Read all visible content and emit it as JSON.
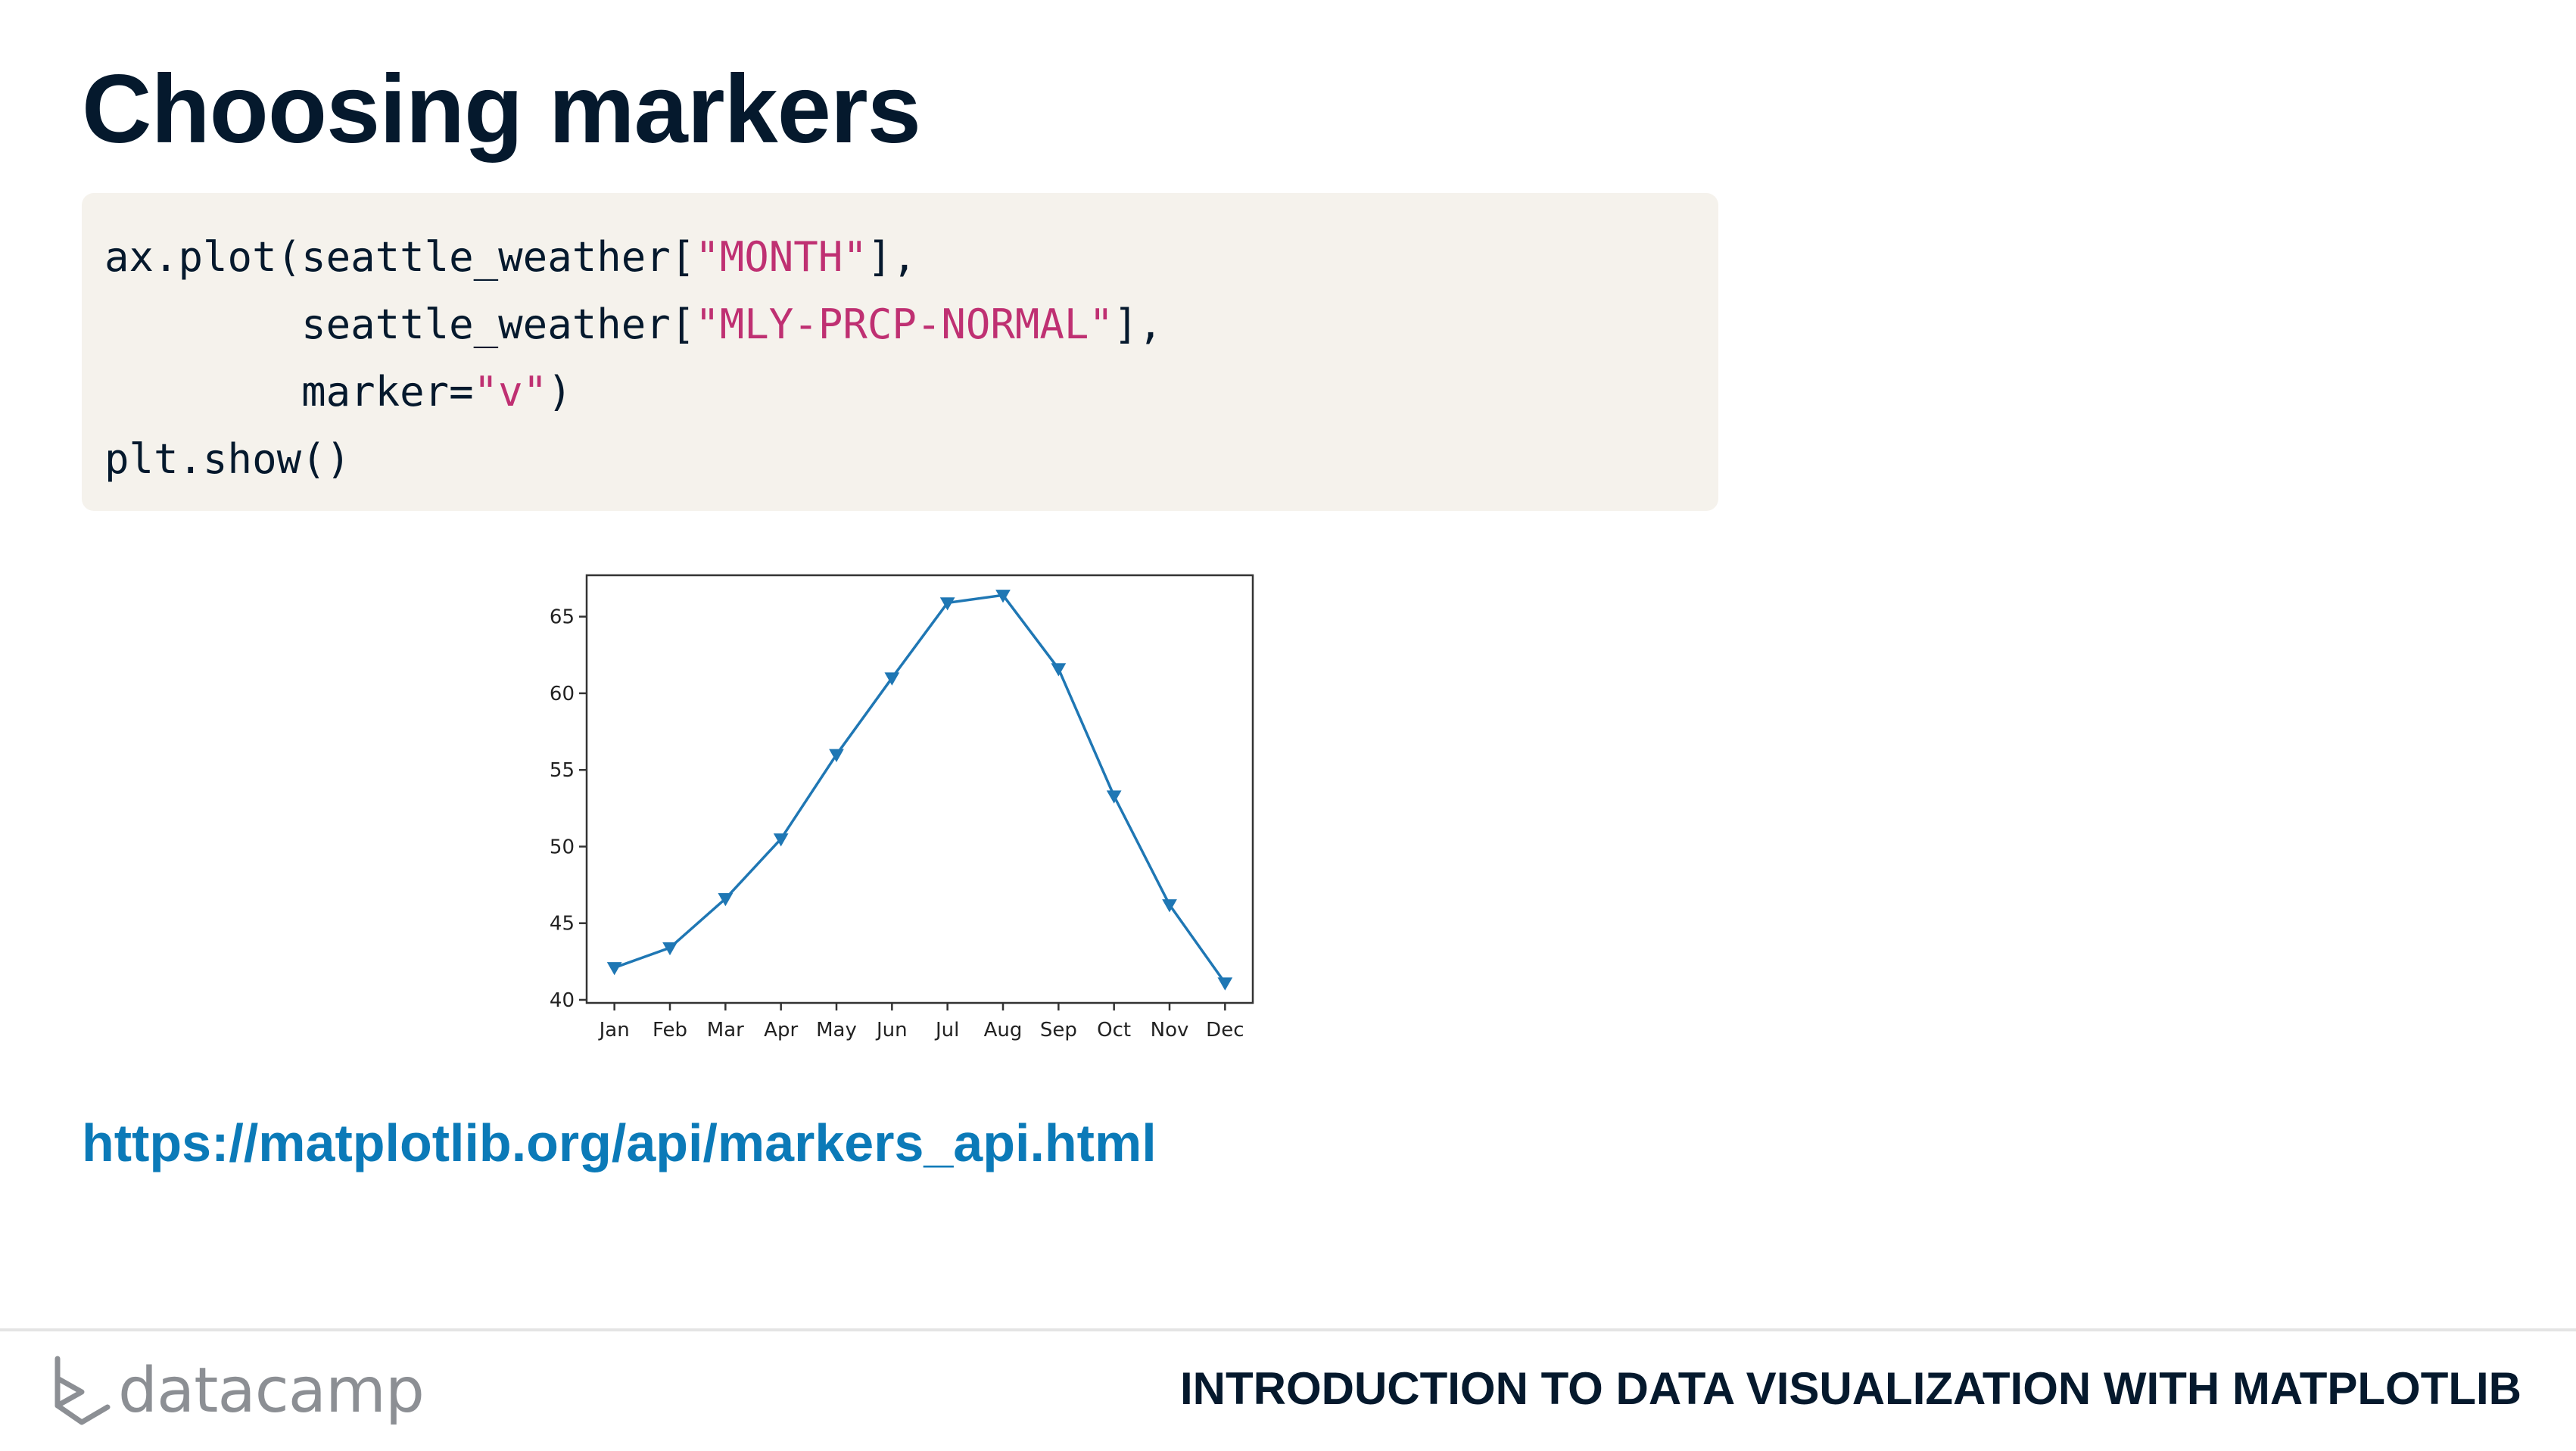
{
  "slide": {
    "title": "Choosing markers",
    "link": "https://matplotlib.org/api/markers_api.html",
    "course_title": "INTRODUCTION TO DATA VISUALIZATION WITH MATPLOTLIB",
    "brand": "datacamp"
  },
  "code": {
    "lines": [
      [
        {
          "t": "ax.plot(seattle_weather["
        },
        {
          "t": "\"MONTH\"",
          "s": true
        },
        {
          "t": "],"
        }
      ],
      [
        {
          "t": "        seattle_weather["
        },
        {
          "t": "\"MLY-PRCP-NORMAL\"",
          "s": true
        },
        {
          "t": "],"
        }
      ],
      [
        {
          "t": "        marker="
        },
        {
          "t": "\"v\"",
          "s": true
        },
        {
          "t": ")"
        }
      ],
      [
        {
          "t": "plt.show()"
        }
      ]
    ]
  },
  "colors": {
    "title": "#05192d",
    "code_background": "#f5f2ec",
    "code_string": "#bf3072",
    "link": "#0b7ab8",
    "line": "#1f77b4",
    "brand_gray": "#8c8f94"
  },
  "chart_data": {
    "type": "line",
    "marker": "v",
    "categories": [
      "Jan",
      "Feb",
      "Mar",
      "Apr",
      "May",
      "Jun",
      "Jul",
      "Aug",
      "Sep",
      "Oct",
      "Nov",
      "Dec"
    ],
    "values": [
      42.1,
      43.4,
      46.6,
      50.5,
      56.0,
      61.0,
      65.9,
      66.4,
      61.6,
      53.3,
      46.2,
      41.1
    ],
    "yticks": [
      40,
      45,
      50,
      55,
      60,
      65
    ],
    "ylim": [
      39.8,
      67.7
    ],
    "title": "",
    "xlabel": "",
    "ylabel": "",
    "grid": false,
    "legend": false
  }
}
